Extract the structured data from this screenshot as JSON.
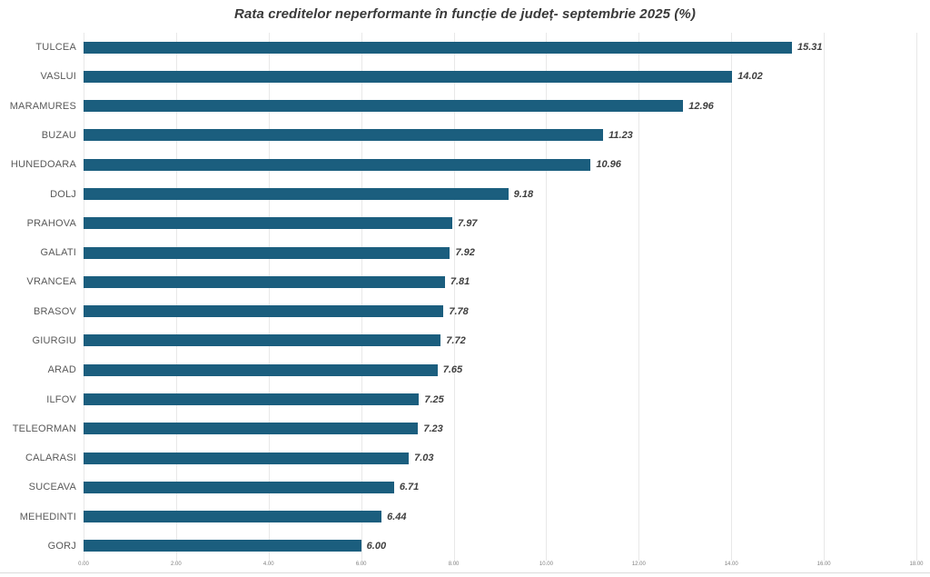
{
  "chart_data": {
    "type": "bar",
    "orientation": "horizontal",
    "title": "Rata creditelor neperformante în funcție de județ- septembrie 2025 (%)",
    "xlabel": "",
    "ylabel": "",
    "legend": "none",
    "grid": "vertical-major",
    "xlim": [
      0,
      18
    ],
    "categories": [
      "TULCEA",
      "VASLUI",
      "MARAMURES",
      "BUZAU",
      "HUNEDOARA",
      "DOLJ",
      "PRAHOVA",
      "GALATI",
      "VRANCEA",
      "BRASOV",
      "GIURGIU",
      "ARAD",
      "ILFOV",
      "TELEORMAN",
      "CALARASI",
      "SUCEAVA",
      "MEHEDINTI",
      "GORJ"
    ],
    "values": [
      15.31,
      14.02,
      12.96,
      11.23,
      10.96,
      9.18,
      7.97,
      7.92,
      7.81,
      7.78,
      7.72,
      7.65,
      7.25,
      7.23,
      7.03,
      6.71,
      6.44,
      6.0
    ],
    "value_labels": [
      "15.31",
      "14.02",
      "12.96",
      "11.23",
      "10.96",
      "9.18",
      "7.97",
      "7.92",
      "7.81",
      "7.78",
      "7.72",
      "7.65",
      "7.25",
      "7.23",
      "7.03",
      "6.71",
      "6.44",
      "6.00"
    ],
    "x_ticks": [
      {
        "value": 0,
        "label": "0.00"
      },
      {
        "value": 2,
        "label": "2.00"
      },
      {
        "value": 4,
        "label": "4.00"
      },
      {
        "value": 6,
        "label": "6.00"
      },
      {
        "value": 8,
        "label": "8.00"
      },
      {
        "value": 10,
        "label": "10.00"
      },
      {
        "value": 12,
        "label": "12.00"
      },
      {
        "value": 14,
        "label": "14.00"
      },
      {
        "value": 16,
        "label": "16.00"
      },
      {
        "value": 18,
        "label": "18.00"
      }
    ],
    "colors": {
      "bar": "#1B5E7E",
      "title_text": "#3A3A3A",
      "category_text": "#595959",
      "value_text": "#3F3F3F",
      "axis_text": "#7F7F7F",
      "gridline": "#E8E8E8",
      "baseline": "#DADADA",
      "background": "#FFFFFF"
    }
  }
}
